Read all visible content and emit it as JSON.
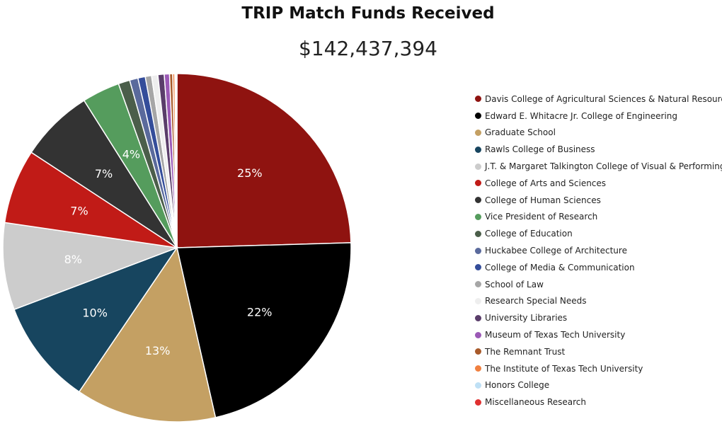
{
  "chart_data": {
    "type": "pie",
    "title": "TRIP Match Funds Received",
    "subtitle": "$142,437,394",
    "categories": [
      "Davis College of Agricultural Sciences & Natural Resources",
      "Edward E. Whitacre Jr. College of Engineering",
      "Graduate School",
      "Rawls College of Business",
      "J.T. & Margaret Talkington College of Visual & Performing Arts",
      "College of Arts and Sciences",
      "College of Human Sciences",
      "Vice President of Research",
      "College of Education",
      "Huckabee College of Architecture",
      "College of Media & Communication",
      "School of Law",
      "Research Special Needs",
      "University Libraries",
      "Museum of Texas Tech University",
      "The Remnant Trust",
      "The Institute of Texas Tech University",
      "Honors College",
      "Miscellaneous Research"
    ],
    "values": [
      25.2,
      22.5,
      13.4,
      10.0,
      8.3,
      7.1,
      7.0,
      3.6,
      1.1,
      0.8,
      0.7,
      0.6,
      0.6,
      0.6,
      0.5,
      0.3,
      0.2,
      0.1,
      0.1
    ],
    "data_labels": [
      "25%",
      "22%",
      "13%",
      "10%",
      "8%",
      "7%",
      "7%",
      "4%",
      "",
      "",
      "",
      "",
      "",
      "",
      "",
      "",
      "",
      "",
      ""
    ],
    "colors": [
      "#8f1310",
      "#000000",
      "#c4a063",
      "#17455f",
      "#cccccc",
      "#c11b17",
      "#333333",
      "#559c5d",
      "#4b5e4a",
      "#5a6a9c",
      "#344d9a",
      "#a6a6a6",
      "#eeeeee",
      "#5a3d6a",
      "#9b59b6",
      "#a85a2a",
      "#f08040",
      "#bfe0f5",
      "#e03030"
    ],
    "label_colors": [
      "#ffffff",
      "#ffffff",
      "#ffffff",
      "#ffffff",
      "#ffffff",
      "#ffffff",
      "#ffffff",
      "#ffffff"
    ],
    "legend_position": "right"
  }
}
